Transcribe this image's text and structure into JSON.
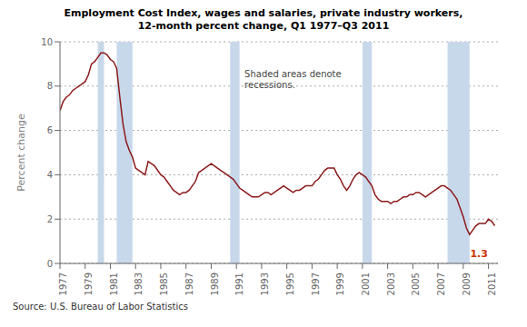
{
  "chart_data": {
    "type": "line",
    "title": "Employment Cost Index, wages and salaries, private industry workers,",
    "subtitle": "12-month percent change, Q1 1977–Q3 2011",
    "ylabel": "Percent change",
    "source": "Source: U.S. Bureau of Labor Statistics",
    "color": "#8b1a1a",
    "band_color": "#c8d8eb",
    "recession_bands": [
      [
        1980.0,
        1980.5
      ],
      [
        1981.5,
        1982.75
      ],
      [
        1990.5,
        1991.25
      ],
      [
        2001.0,
        2001.75
      ],
      [
        2007.75,
        2009.5
      ]
    ],
    "annotations": [
      {
        "text": "1.3",
        "x": 2009.4,
        "y": 0.45,
        "color": "#cc3300"
      },
      {
        "text": "Shaded areas denote\nrecessions.",
        "x": 1991.5,
        "y": 8.7
      }
    ],
    "xlim": [
      1977,
      2011.75
    ],
    "xticks": [
      1977,
      1979,
      1981,
      1983,
      1985,
      1987,
      1989,
      1991,
      1993,
      1995,
      1997,
      1999,
      2001,
      2003,
      2005,
      2007,
      2009,
      2011
    ],
    "ylim": [
      0,
      10
    ],
    "yticks": [
      0,
      2,
      4,
      6,
      8,
      10
    ],
    "grid": true,
    "x": [
      1977.0,
      1977.25,
      1977.5,
      1977.75,
      1978.0,
      1978.25,
      1978.5,
      1978.75,
      1979.0,
      1979.25,
      1979.5,
      1979.75,
      1980.0,
      1980.25,
      1980.5,
      1980.75,
      1981.0,
      1981.25,
      1981.5,
      1981.75,
      1982.0,
      1982.25,
      1982.5,
      1982.75,
      1983.0,
      1983.25,
      1983.5,
      1983.75,
      1984.0,
      1984.25,
      1984.5,
      1984.75,
      1985.0,
      1985.25,
      1985.5,
      1985.75,
      1986.0,
      1986.25,
      1986.5,
      1986.75,
      1987.0,
      1987.25,
      1987.5,
      1987.75,
      1988.0,
      1988.25,
      1988.5,
      1988.75,
      1989.0,
      1989.25,
      1989.5,
      1989.75,
      1990.0,
      1990.25,
      1990.5,
      1990.75,
      1991.0,
      1991.25,
      1991.5,
      1991.75,
      1992.0,
      1992.25,
      1992.5,
      1992.75,
      1993.0,
      1993.25,
      1993.5,
      1993.75,
      1994.0,
      1994.25,
      1994.5,
      1994.75,
      1995.0,
      1995.25,
      1995.5,
      1995.75,
      1996.0,
      1996.25,
      1996.5,
      1996.75,
      1997.0,
      1997.25,
      1997.5,
      1997.75,
      1998.0,
      1998.25,
      1998.5,
      1998.75,
      1999.0,
      1999.25,
      1999.5,
      1999.75,
      2000.0,
      2000.25,
      2000.5,
      2000.75,
      2001.0,
      2001.25,
      2001.5,
      2001.75,
      2002.0,
      2002.25,
      2002.5,
      2002.75,
      2003.0,
      2003.25,
      2003.5,
      2003.75,
      2004.0,
      2004.25,
      2004.5,
      2004.75,
      2005.0,
      2005.25,
      2005.5,
      2005.75,
      2006.0,
      2006.25,
      2006.5,
      2006.75,
      2007.0,
      2007.25,
      2007.5,
      2007.75,
      2008.0,
      2008.25,
      2008.5,
      2008.75,
      2009.0,
      2009.25,
      2009.5,
      2009.75,
      2010.0,
      2010.25,
      2010.5,
      2010.75,
      2011.0,
      2011.25,
      2011.5
    ],
    "values": [
      6.9,
      7.3,
      7.5,
      7.6,
      7.8,
      7.9,
      8.0,
      8.1,
      8.2,
      8.5,
      9.0,
      9.1,
      9.3,
      9.5,
      9.5,
      9.4,
      9.2,
      9.1,
      8.8,
      7.5,
      6.3,
      5.5,
      5.1,
      4.8,
      4.3,
      4.2,
      4.1,
      4.0,
      4.6,
      4.5,
      4.4,
      4.2,
      4.0,
      3.9,
      3.7,
      3.5,
      3.3,
      3.2,
      3.1,
      3.2,
      3.2,
      3.3,
      3.5,
      3.7,
      4.1,
      4.2,
      4.3,
      4.4,
      4.5,
      4.4,
      4.3,
      4.2,
      4.1,
      4.0,
      3.9,
      3.8,
      3.6,
      3.4,
      3.3,
      3.2,
      3.1,
      3.0,
      3.0,
      3.0,
      3.1,
      3.2,
      3.2,
      3.1,
      3.2,
      3.3,
      3.4,
      3.5,
      3.4,
      3.3,
      3.2,
      3.3,
      3.3,
      3.4,
      3.5,
      3.5,
      3.5,
      3.7,
      3.8,
      4.0,
      4.2,
      4.3,
      4.3,
      4.3,
      4.0,
      3.8,
      3.5,
      3.3,
      3.5,
      3.8,
      4.0,
      4.1,
      4.0,
      3.9,
      3.7,
      3.5,
      3.1,
      2.9,
      2.8,
      2.8,
      2.8,
      2.7,
      2.8,
      2.8,
      2.9,
      3.0,
      3.0,
      3.1,
      3.1,
      3.2,
      3.2,
      3.1,
      3.0,
      3.1,
      3.2,
      3.3,
      3.4,
      3.5,
      3.5,
      3.4,
      3.3,
      3.1,
      2.9,
      2.5,
      2.1,
      1.6,
      1.3,
      1.5,
      1.7,
      1.8,
      1.8,
      1.8,
      2.0,
      1.9,
      1.7
    ]
  }
}
